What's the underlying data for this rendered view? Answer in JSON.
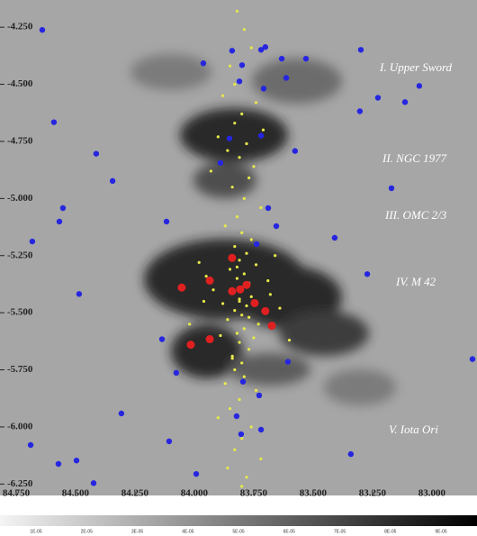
{
  "chart_data": {
    "type": "scatter",
    "xlim": [
      84.818,
      82.81
    ],
    "ylim": [
      -4.131,
      -6.3
    ],
    "xticks": [
      {
        "value": 84.75,
        "label": "84.750"
      },
      {
        "value": 84.5,
        "label": "84.500"
      },
      {
        "value": 84.25,
        "label": "84.250"
      },
      {
        "value": 84.0,
        "label": "84.000"
      },
      {
        "value": 83.75,
        "label": "83.750"
      },
      {
        "value": 83.5,
        "label": "83.500"
      },
      {
        "value": 83.25,
        "label": "83.250"
      },
      {
        "value": 83.0,
        "label": "83.000"
      }
    ],
    "yticks": [
      {
        "value": -4.25,
        "label": "-4.250"
      },
      {
        "value": -4.5,
        "label": "-4.500"
      },
      {
        "value": -4.75,
        "label": "-4.750"
      },
      {
        "value": -5.0,
        "label": "-5.000"
      },
      {
        "value": -5.25,
        "label": "-5.250"
      },
      {
        "value": -5.5,
        "label": "-5.500"
      },
      {
        "value": -5.75,
        "label": "-5.750"
      },
      {
        "value": -6.0,
        "label": "-6.000"
      },
      {
        "value": -6.25,
        "label": "-6.250"
      }
    ],
    "annotations": [
      "I.  Upper Sword",
      "II.  NGC 1977",
      "III.  OMC 2/3",
      "IV.  M 42",
      "V.  Iota Ori"
    ],
    "colorbar_labels": [
      "1E-05",
      "2E-05",
      "3E-05",
      "4E-05",
      "5E-05",
      "6E-05",
      "7E-05",
      "8E-05",
      "9E-05"
    ],
    "series": [
      {
        "color": "#e8e84a",
        "size": 1.6,
        "x": [
          83.82,
          83.79,
          83.76,
          83.85,
          83.88,
          83.74,
          83.8,
          83.83,
          83.71,
          83.9,
          83.78,
          83.86,
          83.81,
          83.75,
          83.93,
          83.77,
          83.84,
          83.79,
          83.72,
          83.82,
          83.87,
          83.8,
          83.76,
          83.83,
          83.78,
          83.81,
          83.74,
          83.85,
          83.79,
          83.82,
          83.77,
          83.8,
          83.84,
          83.76,
          83.81,
          83.78,
          83.83,
          83.69,
          83.95,
          83.8,
          83.86,
          83.73,
          83.79,
          83.82,
          83.88,
          83.75,
          83.81,
          83.77,
          83.92,
          83.68,
          83.84,
          83.8,
          83.98,
          83.64,
          83.83,
          83.79,
          83.87,
          83.74,
          83.81,
          83.85,
          83.9,
          83.76,
          83.8,
          83.83,
          83.72,
          83.86,
          83.78,
          84.02,
          83.6,
          83.82,
          83.81,
          83.85,
          83.79,
          83.77,
          83.89,
          83.84,
          83.66,
          83.96,
          83.8,
          83.83
        ],
        "y": [
          -4.18,
          -4.26,
          -4.34,
          -4.42,
          -4.55,
          -4.58,
          -4.63,
          -4.67,
          -4.7,
          -4.73,
          -4.76,
          -4.79,
          -4.82,
          -4.86,
          -4.88,
          -4.91,
          -4.95,
          -5.0,
          -5.04,
          -5.08,
          -5.12,
          -5.15,
          -5.18,
          -5.21,
          -5.24,
          -5.27,
          -5.29,
          -5.31,
          -5.33,
          -5.35,
          -5.37,
          -5.39,
          -5.41,
          -5.43,
          -5.45,
          -5.47,
          -5.49,
          -5.36,
          -5.34,
          -5.51,
          -5.53,
          -5.55,
          -5.57,
          -5.59,
          -5.46,
          -5.61,
          -5.63,
          -5.66,
          -5.4,
          -5.42,
          -5.69,
          -5.72,
          -5.28,
          -5.48,
          -5.75,
          -5.78,
          -5.81,
          -5.84,
          -5.88,
          -5.92,
          -5.96,
          -6.0,
          -6.05,
          -6.1,
          -6.14,
          -6.18,
          -6.22,
          -5.55,
          -5.62,
          -5.3,
          -5.44,
          -5.26,
          -5.38,
          -5.52,
          -5.6,
          -5.7,
          -5.25,
          -5.45,
          -6.26,
          -4.5
        ]
      },
      {
        "color": "#2626e0",
        "size": 3.2,
        "x": [
          84.64,
          83.841,
          83.719,
          83.701,
          83.799,
          83.962,
          83.632,
          83.299,
          83.53,
          83.053,
          83.227,
          83.81,
          84.591,
          83.708,
          83.613,
          83.303,
          83.113,
          84.413,
          84.344,
          83.576,
          83.17,
          84.553,
          84.568,
          84.117,
          83.689,
          83.655,
          84.682,
          83.409,
          84.485,
          83.272,
          83.738,
          83.852,
          83.89,
          83.719,
          84.076,
          84.307,
          84.689,
          84.572,
          84.496,
          84.424,
          84.106,
          83.992,
          83.822,
          83.719,
          83.727,
          83.803,
          83.606,
          83.341,
          82.829,
          83.795,
          84.136
        ],
        "y": [
          -4.262,
          -4.353,
          -4.349,
          -4.337,
          -4.416,
          -4.408,
          -4.388,
          -4.349,
          -4.388,
          -4.507,
          -4.559,
          -4.487,
          -4.666,
          -4.519,
          -4.472,
          -4.618,
          -4.578,
          -4.804,
          -4.923,
          -4.792,
          -4.955,
          -5.042,
          -5.101,
          -5.101,
          -5.042,
          -5.121,
          -5.188,
          -5.172,
          -5.418,
          -5.331,
          -5.2,
          -4.737,
          -4.844,
          -4.725,
          -5.763,
          -5.941,
          -6.079,
          -6.162,
          -6.147,
          -6.246,
          -6.063,
          -6.206,
          -5.953,
          -6.012,
          -5.862,
          -6.032,
          -5.715,
          -6.119,
          -5.703,
          -5.802,
          -5.616
        ]
      },
      {
        "color": "#e02020",
        "size": 4.5,
        "x": [
          83.841,
          83.935,
          84.053,
          83.841,
          83.807,
          83.78,
          83.746,
          83.701,
          83.674,
          83.935,
          84.015
        ],
        "y": [
          -5.26,
          -5.359,
          -5.39,
          -5.406,
          -5.398,
          -5.378,
          -5.458,
          -5.493,
          -5.557,
          -5.616,
          -5.64
        ]
      }
    ]
  }
}
